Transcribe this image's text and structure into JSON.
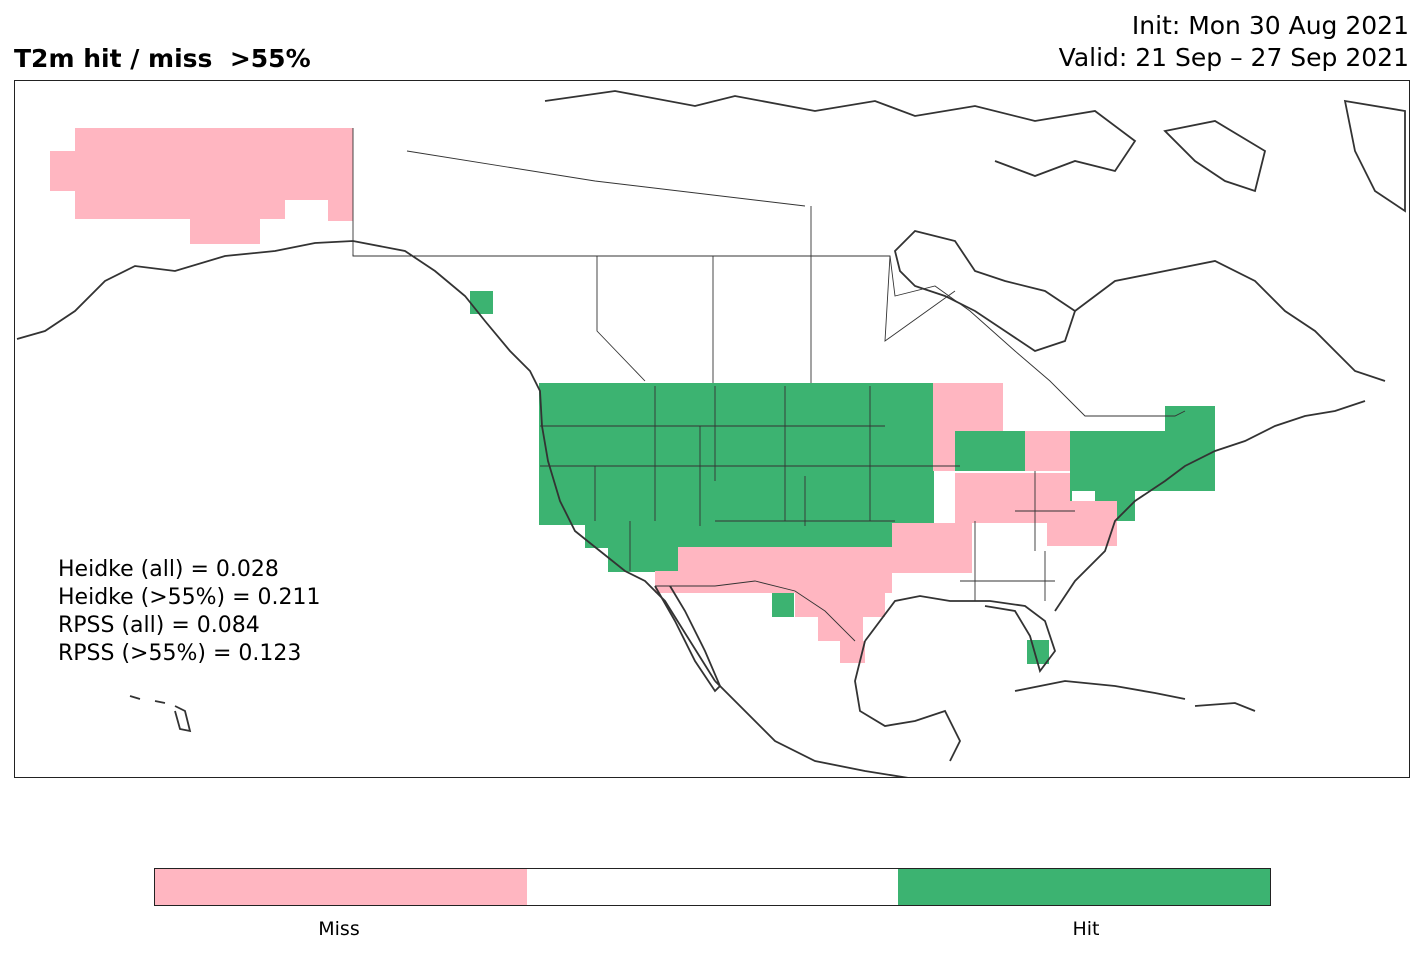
{
  "title": {
    "left": "T2m hit / miss  >55%",
    "init": "Init: Mon 30 Aug 2021",
    "valid": "Valid: 21 Sep – 27 Sep 2021"
  },
  "stats": [
    "Heidke (all) = 0.028",
    "Heidke (>55%) = 0.211",
    "RPSS (all) = 0.084",
    "RPSS (>55%) = 0.123"
  ],
  "colorbar": {
    "segments": [
      {
        "category": "miss",
        "color": "#ffb6c1"
      },
      {
        "category": "neutral",
        "color": "#ffffff"
      },
      {
        "category": "hit",
        "color": "#3cb371"
      }
    ],
    "labels": [
      "Miss",
      "Hit"
    ]
  },
  "colors": {
    "miss": "#ffb6c1",
    "hit": "#3cb371",
    "coastline": "#333333",
    "borders": "#333333"
  }
}
